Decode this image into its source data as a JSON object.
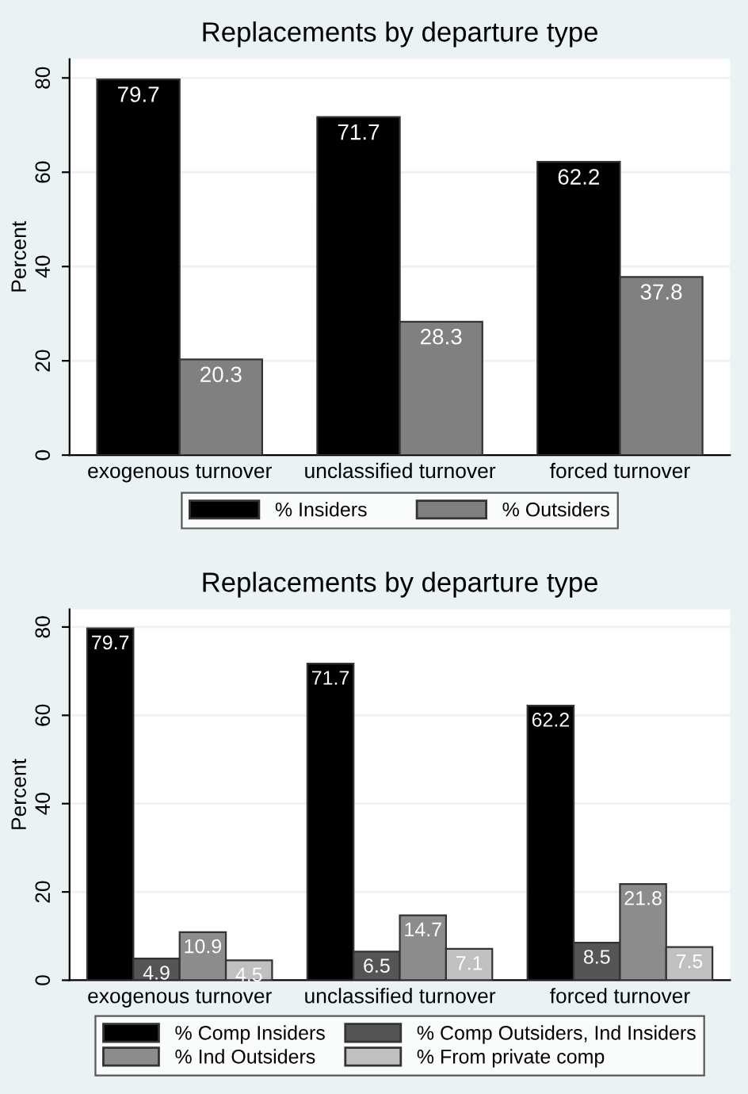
{
  "chart_data": [
    {
      "type": "bar",
      "title": "Replacements by departure type",
      "ylabel": "Percent",
      "categories": [
        "exogenous turnover",
        "unclassified turnover",
        "forced turnover"
      ],
      "series": [
        {
          "name": "% Insiders",
          "color": "#000000",
          "values": [
            79.7,
            71.7,
            62.2
          ]
        },
        {
          "name": "% Outsiders",
          "color": "#808080",
          "values": [
            20.3,
            28.3,
            37.8
          ]
        }
      ],
      "ylim": [
        0,
        84
      ],
      "yticks": [
        0,
        20,
        40,
        60,
        80
      ],
      "grid": "y",
      "legend": "bottom",
      "data_labels": true
    },
    {
      "type": "bar",
      "title": "Replacements by departure type",
      "ylabel": "Percent",
      "categories": [
        "exogenous turnover",
        "unclassified turnover",
        "forced turnover"
      ],
      "series": [
        {
          "name": "% Comp Insiders",
          "color": "#000000",
          "values": [
            79.7,
            71.7,
            62.2
          ]
        },
        {
          "name": "% Comp Outsiders, Ind Insiders",
          "color": "#555555",
          "values": [
            4.9,
            6.5,
            8.5
          ]
        },
        {
          "name": "% Ind Outsiders",
          "color": "#8c8c8c",
          "values": [
            10.9,
            14.7,
            21.8
          ]
        },
        {
          "name": "% From private comp",
          "color": "#c0c0c0",
          "values": [
            4.5,
            7.1,
            7.5
          ]
        }
      ],
      "ylim": [
        0,
        84
      ],
      "yticks": [
        0,
        20,
        40,
        60,
        80
      ],
      "grid": "y",
      "legend": "bottom",
      "data_labels": true
    }
  ]
}
